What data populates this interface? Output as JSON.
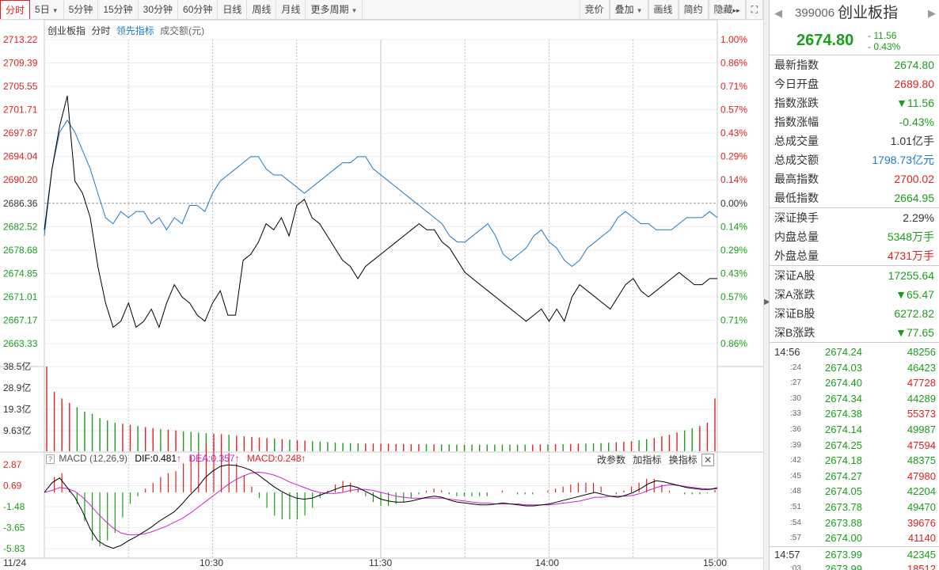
{
  "toolbar": {
    "left": [
      {
        "label": "分时",
        "active": true
      },
      {
        "label": "5日",
        "dropdown": true
      },
      {
        "label": "5分钟"
      },
      {
        "label": "15分钟"
      },
      {
        "label": "30分钟"
      },
      {
        "label": "60分钟"
      },
      {
        "label": "日线"
      },
      {
        "label": "周线"
      },
      {
        "label": "月线"
      },
      {
        "label": "更多周期",
        "dropdown": true
      }
    ],
    "right": [
      {
        "label": "竞价"
      },
      {
        "label": "叠加",
        "dropdown": true
      },
      {
        "label": "画线"
      },
      {
        "label": "简约"
      },
      {
        "label": "隐藏",
        "suffix": "▸▸"
      },
      {
        "label": "⛶",
        "icon": "fullscreen-icon"
      }
    ]
  },
  "chart_header": {
    "name": "创业板指",
    "period": "分时",
    "lead": "领先指标",
    "amount": "成交额(元)"
  },
  "macd_header": {
    "label": "MACD (12,26,9)",
    "dif": "DIF:0.481",
    "dea": "DEA:0.357",
    "macd": "MACD:0.248",
    "btn_params": "改参数",
    "btn_add": "加指标",
    "btn_switch": "换指标"
  },
  "colors": {
    "up": "#e02020",
    "down": "#1a9e1a",
    "line_price": "#000000",
    "line_lead": "#1e7ac8",
    "dea": "#d020d0",
    "grid": "#d8d8d8"
  },
  "chart_data": {
    "type": "line",
    "price_axis": [
      "2713.22",
      "2709.39",
      "2705.55",
      "2701.71",
      "2697.87",
      "2694.04",
      "2690.20",
      "2686.36",
      "2682.52",
      "2678.68",
      "2674.85",
      "2671.01",
      "2667.17",
      "2663.33"
    ],
    "pct_axis": [
      "1.00%",
      "0.86%",
      "0.71%",
      "0.57%",
      "0.43%",
      "0.29%",
      "0.14%",
      "0.00%",
      "0.14%",
      "0.29%",
      "0.43%",
      "0.57%",
      "0.71%",
      "0.86%"
    ],
    "prev_close": 2686.36,
    "volume_axis": [
      "38.5亿",
      "28.9亿",
      "19.3亿",
      "9.63亿"
    ],
    "macd_axis": [
      "2.87",
      "0.69",
      "-1.48",
      "-3.65",
      "-5.83"
    ],
    "time_labels": [
      "11/24",
      "10:30",
      "11:30",
      "14:00",
      "15:00"
    ],
    "price": [
      2682,
      2692,
      2699,
      2704,
      2690,
      2688,
      2684,
      2676,
      2670,
      2666,
      2667,
      2670,
      2666,
      2667,
      2669,
      2666,
      2670,
      2673,
      2671,
      2670,
      2668,
      2667,
      2670,
      2672,
      2668,
      2668,
      2677,
      2678,
      2680,
      2683,
      2682,
      2684,
      2681,
      2686,
      2687,
      2684,
      2683,
      2681,
      2679,
      2677,
      2676,
      2674,
      2676,
      2677,
      2678,
      2679,
      2680,
      2681,
      2682,
      2683,
      2682,
      2682,
      2680,
      2679,
      2677,
      2675,
      2674,
      2673,
      2672,
      2671,
      2670,
      2669,
      2668,
      2667,
      2668,
      2669,
      2667,
      2669,
      2667,
      2671,
      2673,
      2672,
      2671,
      2670,
      2669,
      2671,
      2673,
      2674,
      2672,
      2671,
      2672,
      2673,
      2674,
      2675,
      2674,
      2673,
      2673,
      2674,
      2674
    ],
    "lead": [
      2681,
      2692,
      2698,
      2700,
      2698,
      2695,
      2692,
      2688,
      2684,
      2683,
      2685,
      2684,
      2685,
      2685,
      2683,
      2684,
      2682,
      2684,
      2683,
      2686,
      2686,
      2685,
      2688,
      2690,
      2691,
      2692,
      2693,
      2694,
      2694,
      2692,
      2691,
      2691,
      2690,
      2689,
      2688,
      2689,
      2690,
      2691,
      2692,
      2693,
      2693,
      2694,
      2694,
      2692,
      2691,
      2690,
      2689,
      2688,
      2687,
      2686,
      2685,
      2684,
      2683,
      2681,
      2680,
      2680,
      2681,
      2682,
      2683,
      2681,
      2678,
      2677,
      2678,
      2679,
      2681,
      2682,
      2680,
      2679,
      2677,
      2676,
      2677,
      2679,
      2680,
      2681,
      2682,
      2684,
      2685,
      2684,
      2683,
      2683,
      2682,
      2682,
      2682,
      2683,
      2684,
      2684,
      2684,
      2685,
      2684
    ],
    "volume": [
      38.5,
      27,
      24,
      22,
      20,
      18,
      17,
      15,
      14,
      13,
      12.5,
      12,
      11.5,
      11,
      10.5,
      10,
      9.8,
      9.5,
      9,
      8.8,
      8.5,
      8.2,
      8,
      7.8,
      7.5,
      7,
      6.8,
      6.5,
      6.2,
      6,
      5.8,
      5.5,
      5.3,
      5,
      4.8,
      4.6,
      4.4,
      4.2,
      4,
      3.8,
      3.7,
      3.6,
      3.5,
      3.5,
      3.4,
      3.4,
      3.3,
      3.3,
      3.2,
      3.2,
      3.2,
      3.1,
      3.1,
      3.1,
      3,
      3,
      3,
      3,
      3,
      3,
      3,
      3,
      3,
      3,
      3,
      3.1,
      3.1,
      3.2,
      3.2,
      3.3,
      3.4,
      3.5,
      3.6,
      3.7,
      3.9,
      4.1,
      4.3,
      4.6,
      5,
      5.5,
      6,
      6.8,
      7.5,
      8.5,
      9.5,
      10.5,
      11.5,
      13,
      24
    ],
    "dif": [
      0,
      1,
      1.5,
      0.5,
      -0.5,
      -2,
      -3.8,
      -5,
      -5.5,
      -5.8,
      -5.5,
      -5,
      -4.6,
      -4.1,
      -3.6,
      -3,
      -2.5,
      -2,
      -1.2,
      -0.3,
      0.5,
      1.5,
      2.2,
      2.7,
      2.85,
      2.8,
      2.6,
      2.3,
      1.8,
      1.2,
      0.6,
      0.1,
      -0.3,
      -0.6,
      -0.7,
      -0.6,
      -0.3,
      0,
      0.3,
      0.6,
      0.7,
      0.5,
      0.1,
      -0.3,
      -0.7,
      -0.9,
      -1,
      -1,
      -0.9,
      -0.7,
      -0.5,
      -0.4,
      -0.5,
      -0.8,
      -1,
      -1.1,
      -1.2,
      -1.3,
      -1.3,
      -1.2,
      -1.1,
      -1.2,
      -1.3,
      -1.4,
      -1.4,
      -1.3,
      -1.2,
      -1,
      -0.8,
      -0.6,
      -0.4,
      -0.2,
      0,
      -0.2,
      -0.4,
      -0.5,
      -0.3,
      0,
      0.4,
      0.9,
      1.2,
      1.1,
      0.9,
      0.7,
      0.5,
      0.4,
      0.3,
      0.3,
      0.48
    ],
    "dea": [
      0,
      0.2,
      0.5,
      0.4,
      0.1,
      -0.5,
      -1.3,
      -2.2,
      -3,
      -3.7,
      -4.2,
      -4.4,
      -4.4,
      -4.3,
      -4.1,
      -3.8,
      -3.5,
      -3.1,
      -2.7,
      -2.2,
      -1.6,
      -1,
      -0.4,
      0.2,
      0.8,
      1.3,
      1.7,
      2,
      2.1,
      2,
      1.8,
      1.5,
      1.1,
      0.8,
      0.5,
      0.2,
      0,
      -0.1,
      -0.1,
      0,
      0.2,
      0.3,
      0.3,
      0.2,
      0,
      -0.2,
      -0.4,
      -0.5,
      -0.6,
      -0.6,
      -0.6,
      -0.6,
      -0.6,
      -0.7,
      -0.8,
      -0.9,
      -1,
      -1.1,
      -1.1,
      -1.2,
      -1.2,
      -1.2,
      -1.2,
      -1.3,
      -1.3,
      -1.3,
      -1.3,
      -1.2,
      -1.1,
      -1,
      -0.9,
      -0.7,
      -0.5,
      -0.5,
      -0.4,
      -0.4,
      -0.4,
      -0.3,
      -0.1,
      0.2,
      0.5,
      0.7,
      0.8,
      0.7,
      0.6,
      0.5,
      0.4,
      0.35,
      0.36
    ]
  },
  "panel": {
    "nav_prev": "◀",
    "nav_next": "▶",
    "code": "399006",
    "name": "创业板指",
    "price": "2674.80",
    "change": "- 11.56",
    "change_pct": "- 0.43%",
    "stats": [
      {
        "k": "最新指数",
        "v": "2674.80",
        "c": "g"
      },
      {
        "k": "今日开盘",
        "v": "2689.80",
        "c": "r"
      },
      {
        "k": "指数涨跌",
        "v": "▼11.56",
        "c": "g"
      },
      {
        "k": "指数涨幅",
        "v": "-0.43%",
        "c": "g"
      },
      {
        "k": "总成交量",
        "v": "1.01亿手",
        "c": "d"
      },
      {
        "k": "总成交额",
        "v": "1798.73亿元",
        "c": "b"
      },
      {
        "k": "最高指数",
        "v": "2700.02",
        "c": "r"
      },
      {
        "k": "最低指数",
        "v": "2664.95",
        "c": "g"
      }
    ],
    "stats2": [
      {
        "k": "深证换手",
        "v": "2.29%",
        "c": "d"
      },
      {
        "k": "内盘总量",
        "v": "5348万手",
        "c": "g"
      },
      {
        "k": "外盘总量",
        "v": "4731万手",
        "c": "r"
      }
    ],
    "stats3": [
      {
        "k": "深证A股",
        "v": "17255.64",
        "c": "g"
      },
      {
        "k": "深A涨跌",
        "v": "▼65.47",
        "c": "g"
      },
      {
        "k": "深证B股",
        "v": "6272.82",
        "c": "g"
      },
      {
        "k": "深B涨跌",
        "v": "▼77.65",
        "c": "g"
      }
    ],
    "ticks": [
      {
        "t": "14:56",
        "p": "2674.24",
        "v": "48256",
        "c": "g",
        "main": true
      },
      {
        "t": ":24",
        "p": "2674.03",
        "v": "46423",
        "c": "g"
      },
      {
        "t": ":27",
        "p": "2674.40",
        "v": "47728",
        "c": "r"
      },
      {
        "t": ":30",
        "p": "2674.34",
        "v": "44289",
        "c": "g"
      },
      {
        "t": ":33",
        "p": "2674.38",
        "v": "55373",
        "c": "r"
      },
      {
        "t": ":36",
        "p": "2674.14",
        "v": "49987",
        "c": "g"
      },
      {
        "t": ":39",
        "p": "2674.25",
        "v": "47594",
        "c": "r"
      },
      {
        "t": ":42",
        "p": "2674.18",
        "v": "48375",
        "c": "g"
      },
      {
        "t": ":45",
        "p": "2674.27",
        "v": "47980",
        "c": "r"
      },
      {
        "t": ":48",
        "p": "2674.05",
        "v": "42204",
        "c": "g"
      },
      {
        "t": ":51",
        "p": "2673.78",
        "v": "49470",
        "c": "g"
      },
      {
        "t": ":54",
        "p": "2673.88",
        "v": "39676",
        "c": "r"
      },
      {
        "t": ":57",
        "p": "2674.00",
        "v": "41140",
        "c": "r"
      },
      {
        "t": "14:57",
        "p": "2673.99",
        "v": "42345",
        "c": "g",
        "main": true,
        "sep": true
      },
      {
        "t": ":03",
        "p": "2673.99",
        "v": "18512",
        "c": "r"
      }
    ]
  }
}
